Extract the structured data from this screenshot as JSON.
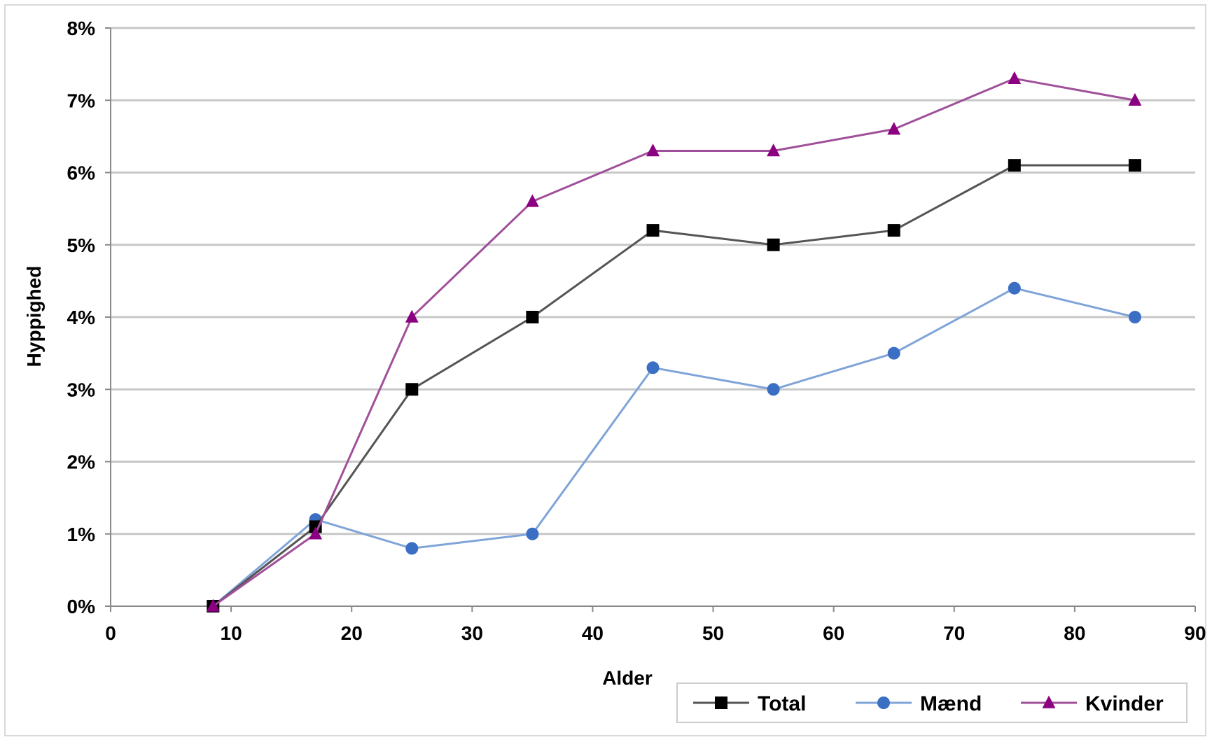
{
  "chart_data": {
    "type": "line",
    "title": "",
    "xlabel": "Alder",
    "ylabel": "Hyppighed",
    "xlim": [
      0,
      90
    ],
    "ylim": [
      0,
      8
    ],
    "x_ticks": [
      "0",
      "10",
      "20",
      "30",
      "40",
      "50",
      "60",
      "70",
      "80",
      "90"
    ],
    "y_ticks": [
      "0%",
      "1%",
      "2%",
      "3%",
      "4%",
      "5%",
      "6%",
      "7%",
      "8%"
    ],
    "grid": "horizontal",
    "legend_position": "bottom-right",
    "series": [
      {
        "name": "Total",
        "color": "#000000",
        "line_color": "#555555",
        "marker": "square",
        "x": [
          8.5,
          17,
          25,
          35,
          45,
          55,
          65,
          75,
          85
        ],
        "y": [
          0,
          1.1,
          3.0,
          4.0,
          5.2,
          5.0,
          5.2,
          6.1,
          6.1
        ]
      },
      {
        "name": "Mænd",
        "color": "#3a6fc4",
        "line_color": "#7fa4d8",
        "marker": "circle",
        "x": [
          8.5,
          17,
          25,
          35,
          45,
          55,
          65,
          75,
          85
        ],
        "y": [
          0,
          1.2,
          0.8,
          1.0,
          3.3,
          3.0,
          3.5,
          4.4,
          4.0
        ]
      },
      {
        "name": "Kvinder",
        "color": "#8b0080",
        "line_color": "#a0509a",
        "marker": "triangle",
        "x": [
          8.5,
          17,
          25,
          35,
          45,
          55,
          65,
          75,
          85
        ],
        "y": [
          0,
          1.0,
          4.0,
          5.6,
          6.3,
          6.3,
          6.6,
          7.3,
          7.0
        ]
      }
    ]
  }
}
